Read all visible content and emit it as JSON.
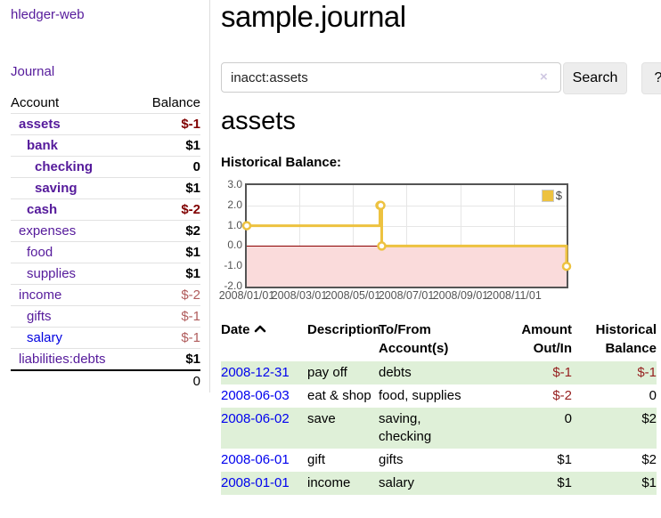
{
  "app": {
    "title": "hledger-web"
  },
  "sidebar": {
    "journal_link": "Journal",
    "table": {
      "headers": {
        "account": "Account",
        "balance": "Balance"
      },
      "rows": [
        {
          "label": "assets",
          "indent": 1,
          "bold": true,
          "balance": "$-1",
          "balance_style": "neg-strong"
        },
        {
          "label": "bank",
          "indent": 2,
          "bold": true,
          "balance": "$1",
          "balance_style": "pos"
        },
        {
          "label": "checking",
          "indent": 3,
          "bold": true,
          "balance": "0",
          "balance_style": "pos"
        },
        {
          "label": "saving",
          "indent": 3,
          "bold": true,
          "balance": "$1",
          "balance_style": "pos"
        },
        {
          "label": "cash",
          "indent": 2,
          "bold": true,
          "balance": "$-2",
          "balance_style": "neg-strong"
        },
        {
          "label": "expenses",
          "indent": 1,
          "bold": false,
          "balance": "$2",
          "balance_style": "pos"
        },
        {
          "label": "food",
          "indent": 2,
          "bold": false,
          "balance": "$1",
          "balance_style": "pos"
        },
        {
          "label": "supplies",
          "indent": 2,
          "bold": false,
          "balance": "$1",
          "balance_style": "pos"
        },
        {
          "label": "income",
          "indent": 1,
          "bold": false,
          "balance": "$-2",
          "balance_style": "neg-soft"
        },
        {
          "label": "gifts",
          "indent": 2,
          "bold": false,
          "balance": "$-1",
          "balance_style": "neg-soft"
        },
        {
          "label": "salary",
          "indent": 2,
          "bold": false,
          "balance": "$-1",
          "balance_style": "neg-soft",
          "link_color": "blue"
        },
        {
          "label": "liabilities:debts",
          "indent": 1,
          "bold": false,
          "balance": "$1",
          "balance_style": "pos"
        }
      ],
      "total": "0"
    }
  },
  "header": {
    "title": "sample.journal"
  },
  "search": {
    "value": "inacct:assets",
    "clear_icon": "×",
    "button_label": "Search",
    "help_label": "?"
  },
  "account_page": {
    "heading": "assets",
    "chart_label": "Historical Balance:"
  },
  "chart_data": {
    "type": "line",
    "step": true,
    "title": "Historical Balance",
    "series": [
      {
        "name": "$",
        "color": "#edc240",
        "points": [
          [
            "2008-01-01",
            1
          ],
          [
            "2008-06-01",
            2
          ],
          [
            "2008-06-02",
            2
          ],
          [
            "2008-06-03",
            0
          ],
          [
            "2008-12-31",
            -1
          ]
        ]
      }
    ],
    "ylim": [
      -2,
      3
    ],
    "yticks": [
      3.0,
      2.0,
      1.0,
      0.0,
      -1.0,
      -2.0
    ],
    "ytick_labels": [
      "3.0",
      "2.0",
      "1.0",
      "0.0",
      "-1.0",
      "-2.0"
    ],
    "xticks": [
      "2008/01/01",
      "2008/03/01",
      "2008/05/01",
      "2008/07/01",
      "2008/09/01",
      "2008/11/01"
    ],
    "x_range": [
      "2008-01-01",
      "2008-12-31"
    ],
    "grid": true,
    "legend": {
      "label": "$",
      "position": "top-right"
    },
    "negative_region_color": "#fadbdb",
    "zero_line_color": "#8b0000"
  },
  "register": {
    "headers": {
      "date": "Date",
      "description": "Description",
      "accounts": "To/From\nAccount(s)",
      "amount": "Amount\nOut/In",
      "balance": "Historical\nBalance"
    },
    "sort": {
      "column": "date",
      "direction": "asc"
    },
    "rows": [
      {
        "date": "2008-12-31",
        "description": "pay off",
        "accounts": "debts",
        "amount": "$-1",
        "amount_neg": true,
        "balance": "$-1",
        "balance_neg": true,
        "shaded": true
      },
      {
        "date": "2008-06-03",
        "description": "eat & shop",
        "accounts": "food, supplies",
        "amount": "$-2",
        "amount_neg": true,
        "balance": "0",
        "balance_neg": false,
        "shaded": false
      },
      {
        "date": "2008-06-02",
        "description": "save",
        "accounts": "saving,\nchecking",
        "amount": "0",
        "amount_neg": false,
        "balance": "$2",
        "balance_neg": false,
        "shaded": true
      },
      {
        "date": "2008-06-01",
        "description": "gift",
        "accounts": "gifts",
        "amount": "$1",
        "amount_neg": false,
        "balance": "$2",
        "balance_neg": false,
        "shaded": false
      },
      {
        "date": "2008-01-01",
        "description": "income",
        "accounts": "salary",
        "amount": "$1",
        "amount_neg": false,
        "balance": "$1",
        "balance_neg": false,
        "shaded": true
      }
    ]
  },
  "colors": {
    "link_purple": "#551a9b",
    "link_blue": "#0000ee",
    "negative_strong": "#800000",
    "negative_soft": "#b05c5c",
    "negative_table": "#962020",
    "row_green": "#dff0d8",
    "chart_line_gold": "#edc240",
    "chart_negative_fill": "#fadbdb",
    "chart_zero_line": "#8b0000",
    "chart_border": "#545454"
  }
}
